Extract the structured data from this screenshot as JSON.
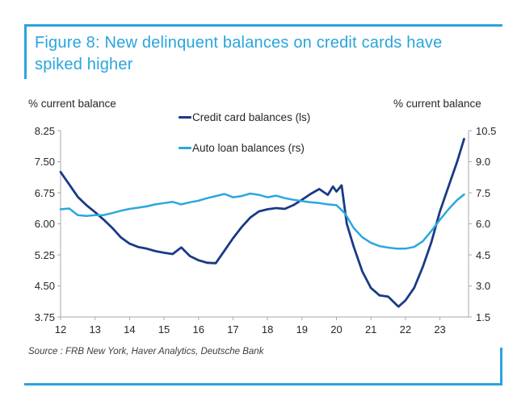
{
  "figure": {
    "title_lines": [
      "Figure 8: New delinquent balances on credit cards have",
      "spiked higher"
    ],
    "source": "Source : FRB New York, Haver Analytics, Deutsche Bank"
  },
  "colors": {
    "accent_blue": "#29a4dd",
    "credit_card_navy": "#1a3a86",
    "auto_loan_blue": "#2aa7e0",
    "axis_gray": "#a9a9a9",
    "text_dark": "#262626"
  },
  "chart_data": {
    "type": "line",
    "title": "Figure 8: New delinquent balances on credit cards have spiked higher",
    "grid": false,
    "legend_position": "top-center",
    "left_axis": {
      "label": "% current balance",
      "range": [
        3.75,
        8.25
      ],
      "ticks": [
        8.25,
        7.5,
        6.75,
        6.0,
        5.25,
        4.5,
        3.75
      ],
      "tick_labels": [
        "8.25",
        "7.50",
        "6.75",
        "6.00",
        "5.25",
        "4.50",
        "3.75"
      ]
    },
    "right_axis": {
      "label": "% current balance",
      "range": [
        1.5,
        10.5
      ],
      "ticks": [
        10.5,
        9.0,
        7.5,
        6.0,
        4.5,
        3.0,
        1.5
      ],
      "tick_labels": [
        "10.5",
        "9.0",
        "7.5",
        "6.0",
        "4.5",
        "3.0",
        "1.5"
      ]
    },
    "x_axis": {
      "range": [
        12,
        23.83
      ],
      "ticks": [
        12,
        13,
        14,
        15,
        16,
        17,
        18,
        19,
        20,
        21,
        22,
        23
      ],
      "tick_labels": [
        "12",
        "13",
        "14",
        "15",
        "16",
        "17",
        "18",
        "19",
        "20",
        "21",
        "22",
        "23"
      ]
    },
    "series": [
      {
        "name": "Credit card balances (ls)",
        "axis": "left",
        "color": "#1a3a86",
        "x": [
          12,
          12.25,
          12.5,
          12.75,
          13,
          13.25,
          13.5,
          13.75,
          14,
          14.25,
          14.5,
          14.75,
          15,
          15.25,
          15.5,
          15.75,
          16,
          16.25,
          16.5,
          16.75,
          17,
          17.25,
          17.5,
          17.75,
          18,
          18.25,
          18.5,
          18.75,
          19,
          19.25,
          19.5,
          19.75,
          19.9,
          20.0,
          20.15,
          20.3,
          20.5,
          20.75,
          21,
          21.25,
          21.5,
          21.8,
          22,
          22.25,
          22.5,
          22.75,
          23,
          23.25,
          23.5,
          23.7
        ],
        "values": [
          7.25,
          6.95,
          6.65,
          6.45,
          6.28,
          6.1,
          5.9,
          5.67,
          5.52,
          5.44,
          5.4,
          5.34,
          5.3,
          5.27,
          5.43,
          5.22,
          5.12,
          5.06,
          5.05,
          5.35,
          5.65,
          5.92,
          6.15,
          6.3,
          6.35,
          6.38,
          6.36,
          6.45,
          6.58,
          6.72,
          6.84,
          6.7,
          6.9,
          6.78,
          6.93,
          6.0,
          5.45,
          4.85,
          4.45,
          4.27,
          4.24,
          4.0,
          4.15,
          4.45,
          4.95,
          5.55,
          6.3,
          6.9,
          7.5,
          8.05
        ]
      },
      {
        "name": "Auto loan balances (rs)",
        "axis": "right",
        "color": "#2aa7e0",
        "x": [
          12,
          12.25,
          12.5,
          12.75,
          13,
          13.25,
          13.5,
          13.75,
          14,
          14.25,
          14.5,
          14.75,
          15,
          15.25,
          15.5,
          15.75,
          16,
          16.25,
          16.5,
          16.75,
          17,
          17.25,
          17.5,
          17.75,
          18,
          18.25,
          18.5,
          18.75,
          19,
          19.25,
          19.5,
          19.75,
          20,
          20.25,
          20.5,
          20.75,
          21,
          21.25,
          21.5,
          21.75,
          22,
          22.25,
          22.5,
          22.75,
          23,
          23.25,
          23.5,
          23.7
        ],
        "values": [
          6.7,
          6.74,
          6.42,
          6.38,
          6.42,
          6.42,
          6.52,
          6.63,
          6.72,
          6.78,
          6.84,
          6.94,
          7.0,
          7.06,
          6.94,
          7.04,
          7.12,
          7.24,
          7.34,
          7.44,
          7.28,
          7.34,
          7.46,
          7.4,
          7.28,
          7.36,
          7.24,
          7.16,
          7.1,
          7.04,
          7.0,
          6.94,
          6.9,
          6.5,
          5.8,
          5.35,
          5.08,
          4.92,
          4.85,
          4.8,
          4.8,
          4.88,
          5.15,
          5.65,
          6.2,
          6.7,
          7.15,
          7.42
        ]
      }
    ]
  }
}
